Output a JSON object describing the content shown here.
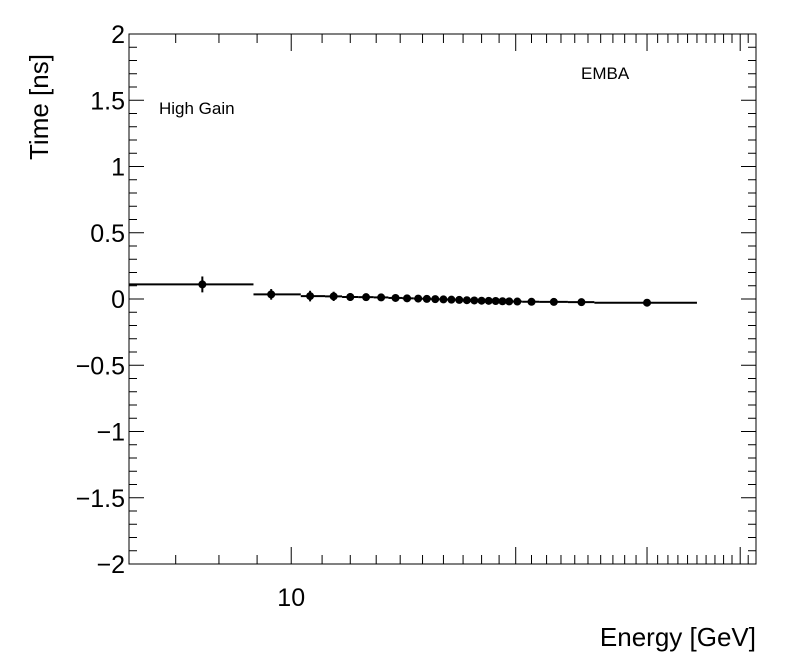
{
  "chart_data": {
    "type": "scatter",
    "xlabel": "Energy [GeV]",
    "ylabel": "Time [ns]",
    "x_scale": "log",
    "xlim": [
      6.06,
      42.0
    ],
    "ylim": [
      -2,
      2
    ],
    "x_tick_labels": [
      {
        "value": 10,
        "label": "10"
      }
    ],
    "y_ticks": [
      {
        "value": 2,
        "label": "2"
      },
      {
        "value": 1.5,
        "label": "1.5"
      },
      {
        "value": 1,
        "label": "1"
      },
      {
        "value": 0.5,
        "label": "0.5"
      },
      {
        "value": 0,
        "label": "0"
      },
      {
        "value": -0.5,
        "label": "−0.5"
      },
      {
        "value": -1,
        "label": "−1"
      },
      {
        "value": -1.5,
        "label": "−1.5"
      },
      {
        "value": -2,
        "label": "−2"
      }
    ],
    "annotations": {
      "gain": "High Gain",
      "region": "EMBA"
    },
    "grid": false,
    "series": [
      {
        "points": [
          {
            "x": 7.6,
            "y": 0.11,
            "xlo": 6.06,
            "xhi": 8.9,
            "err": 0.06
          },
          {
            "x": 9.4,
            "y": 0.035,
            "xlo": 8.9,
            "xhi": 10.3,
            "err": 0.04
          },
          {
            "x": 10.6,
            "y": 0.022,
            "xlo": 10.3,
            "xhi": 11.1,
            "err": 0.04
          },
          {
            "x": 11.4,
            "y": 0.02,
            "xlo": 11.1,
            "xhi": 11.7,
            "err": 0.035
          },
          {
            "x": 12.0,
            "y": 0.015,
            "xlo": 11.7,
            "xhi": 12.3,
            "err": 0.03
          },
          {
            "x": 12.6,
            "y": 0.014,
            "xlo": 12.3,
            "xhi": 12.9,
            "err": 0.028
          },
          {
            "x": 13.2,
            "y": 0.012,
            "xlo": 12.9,
            "xhi": 13.5,
            "err": 0.026
          },
          {
            "x": 13.8,
            "y": 0.008,
            "xlo": 13.5,
            "xhi": 14.1,
            "err": 0.024
          },
          {
            "x": 14.3,
            "y": 0.005,
            "xlo": 14.1,
            "xhi": 14.6,
            "err": 0.022
          },
          {
            "x": 14.8,
            "y": 0.003,
            "xlo": 14.6,
            "xhi": 15.0,
            "err": 0.021
          },
          {
            "x": 15.2,
            "y": 0.001,
            "xlo": 15.0,
            "xhi": 15.4,
            "err": 0.02
          },
          {
            "x": 15.6,
            "y": -0.001,
            "xlo": 15.4,
            "xhi": 15.8,
            "err": 0.02
          },
          {
            "x": 16.0,
            "y": -0.003,
            "xlo": 15.8,
            "xhi": 16.2,
            "err": 0.019
          },
          {
            "x": 16.4,
            "y": -0.005,
            "xlo": 16.2,
            "xhi": 16.6,
            "err": 0.018
          },
          {
            "x": 16.8,
            "y": -0.007,
            "xlo": 16.6,
            "xhi": 17.0,
            "err": 0.018
          },
          {
            "x": 17.2,
            "y": -0.009,
            "xlo": 17.0,
            "xhi": 17.4,
            "err": 0.017
          },
          {
            "x": 17.6,
            "y": -0.011,
            "xlo": 17.4,
            "xhi": 17.8,
            "err": 0.017
          },
          {
            "x": 18.0,
            "y": -0.013,
            "xlo": 17.8,
            "xhi": 18.2,
            "err": 0.016
          },
          {
            "x": 18.4,
            "y": -0.014,
            "xlo": 18.2,
            "xhi": 18.6,
            "err": 0.016
          },
          {
            "x": 18.8,
            "y": -0.015,
            "xlo": 18.6,
            "xhi": 19.0,
            "err": 0.015
          },
          {
            "x": 19.2,
            "y": -0.017,
            "xlo": 19.0,
            "xhi": 19.4,
            "err": 0.015
          },
          {
            "x": 19.6,
            "y": -0.018,
            "xlo": 19.4,
            "xhi": 19.8,
            "err": 0.015
          },
          {
            "x": 20.1,
            "y": -0.019,
            "xlo": 19.8,
            "xhi": 20.4,
            "err": 0.014
          },
          {
            "x": 21.0,
            "y": -0.021,
            "xlo": 20.4,
            "xhi": 21.5,
            "err": 0.014
          },
          {
            "x": 22.5,
            "y": -0.022,
            "xlo": 21.5,
            "xhi": 23.5,
            "err": 0.013
          },
          {
            "x": 24.5,
            "y": -0.024,
            "xlo": 23.5,
            "xhi": 25.5,
            "err": 0.013
          },
          {
            "x": 30.0,
            "y": -0.028,
            "xlo": 25.5,
            "xhi": 35.0,
            "err": 0.012
          }
        ]
      }
    ]
  }
}
